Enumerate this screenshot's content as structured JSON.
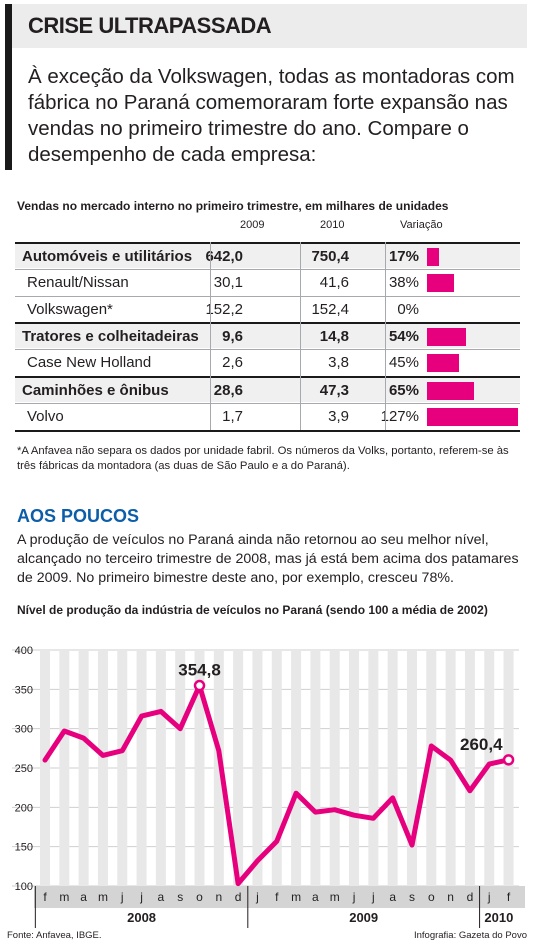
{
  "header": {
    "title": "CRISE ULTRAPASSADA",
    "lead": "À exceção da Volkswagen, todas as montadoras com fábrica no Paraná comemoraram forte expansão nas vendas no primeiro trimestre do ano. Compare o desempenho de cada empresa:"
  },
  "table": {
    "caption": "Vendas no mercado interno no primeiro trimestre, em milhares de unidades",
    "col_2009": "2009",
    "col_2010": "2010",
    "col_var": "Variação",
    "rows": [
      {
        "label": "Automóveis e utilitários",
        "v2009": "642,0",
        "v2010": "750,4",
        "var": "17%",
        "pct": 17,
        "main": true
      },
      {
        "label": "Renault/Nissan",
        "v2009": "30,1",
        "v2010": "41,6",
        "var": "38%",
        "pct": 38,
        "main": false
      },
      {
        "label": "Volkswagen*",
        "v2009": "152,2",
        "v2010": "152,4",
        "var": "0%",
        "pct": 0,
        "main": false
      },
      {
        "label": "Tratores e colheitadeiras",
        "v2009": "9,6",
        "v2010": "14,8",
        "var": "54%",
        "pct": 54,
        "main": true
      },
      {
        "label": "Case New Holland",
        "v2009": "2,6",
        "v2010": "3,8",
        "var": "45%",
        "pct": 45,
        "main": false
      },
      {
        "label": "Caminhões e ônibus",
        "v2009": "28,6",
        "v2010": "47,3",
        "var": "65%",
        "pct": 65,
        "main": true
      },
      {
        "label": "Volvo",
        "v2009": "1,7",
        "v2010": "3,9",
        "var": "127%",
        "pct": 127,
        "main": false
      }
    ],
    "footnote": "*A Anfavea não separa os dados por unidade fabril. Os números da Volks, portanto, referem-se às três fábricas da montadora (as duas de São Paulo e a do Paraná).",
    "bar_color": "#e6007e"
  },
  "section": {
    "title": "AOS POUCOS",
    "body": "A produção de veículos no Paraná ainda não retornou ao seu melhor nível, alcançado no terceiro trimestre de 2008, mas já está bem acima dos patamares de 2009. No primeiro bimestre deste ano, por exemplo, cresceu 78%.",
    "title_color": "#0d5ea8"
  },
  "chart_data": {
    "type": "line",
    "title": "Nível de produção da indústria de veículos no Paraná (sendo 100 a média de 2002)",
    "x": [
      "f",
      "m",
      "a",
      "m",
      "j",
      "j",
      "a",
      "s",
      "o",
      "n",
      "d",
      "j",
      "f",
      "m",
      "a",
      "m",
      "j",
      "j",
      "a",
      "s",
      "o",
      "n",
      "d",
      "j",
      "f"
    ],
    "years": [
      {
        "label": "2008",
        "from": 0,
        "to": 10
      },
      {
        "label": "2009",
        "from": 11,
        "to": 22
      },
      {
        "label": "2010",
        "from": 23,
        "to": 24
      }
    ],
    "series": [
      {
        "values": [
          260,
          297,
          288,
          266,
          272,
          316,
          322,
          300,
          354.8,
          272,
          103,
          132,
          157,
          218,
          194,
          197,
          190,
          186,
          212,
          152,
          278,
          260,
          221,
          255,
          260.4
        ]
      }
    ],
    "ylim": [
      100,
      400
    ],
    "yticks": [
      100,
      150,
      200,
      250,
      300,
      350,
      400
    ],
    "annotations": [
      {
        "index": 8,
        "text": "354,8"
      },
      {
        "index": 24,
        "text": "260,4"
      }
    ],
    "grid": true,
    "line_color": "#e6007e",
    "grid_color": "#ffffff",
    "band_color": "#e8e8e8"
  },
  "sources": {
    "left": "Fonte: Anfavea, IBGE.",
    "right": "Infografia: Gazeta do Povo"
  }
}
